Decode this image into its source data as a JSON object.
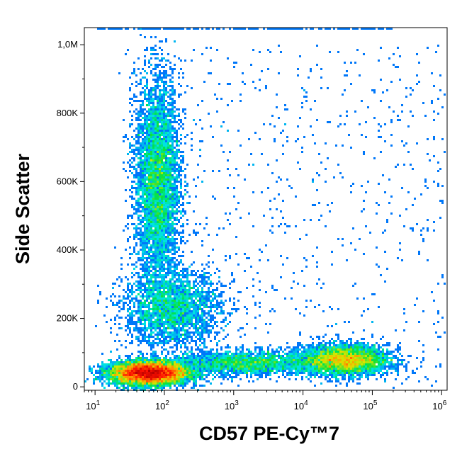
{
  "chart_data": {
    "type": "scatter",
    "subtype": "flow-cytometry-density-dot-plot",
    "title": "",
    "xlabel": "CD57 PE-Cy™7",
    "ylabel": "Side Scatter",
    "x_scale": "log",
    "x_range": [
      7,
      1200000
    ],
    "y_scale": "linear",
    "y_range": [
      -10000,
      1050000
    ],
    "grid": false,
    "legend": "none",
    "x_ticks": [
      {
        "value": 10,
        "base": "10",
        "exp": "1"
      },
      {
        "value": 100,
        "base": "10",
        "exp": "2"
      },
      {
        "value": 1000,
        "base": "10",
        "exp": "3"
      },
      {
        "value": 10000,
        "base": "10",
        "exp": "4"
      },
      {
        "value": 100000,
        "base": "10",
        "exp": "5"
      },
      {
        "value": 1000000,
        "base": "10",
        "exp": "6"
      }
    ],
    "y_ticks": [
      {
        "value": 0,
        "label": "0"
      },
      {
        "value": 200000,
        "label": "200K"
      },
      {
        "value": 400000,
        "label": "400K"
      },
      {
        "value": 600000,
        "label": "600K"
      },
      {
        "value": 800000,
        "label": "800K"
      },
      {
        "value": 1000000,
        "label": "1,0M"
      }
    ],
    "colormap": [
      "#0000cc",
      "#0088ff",
      "#00e8e0",
      "#00e040",
      "#d8e800",
      "#ff9000",
      "#ff1000",
      "#b00000"
    ],
    "populations": [
      {
        "x_center": 60,
        "y_center": 40000,
        "x_spread_decades": 0.28,
        "y_spread": 17000,
        "weight": 1.0
      },
      {
        "x_center": 80,
        "y_center": 600000,
        "x_spread_decades": 0.16,
        "y_spread": 150000,
        "weight": 0.55
      },
      {
        "x_center": 130,
        "y_center": 230000,
        "x_spread_decades": 0.35,
        "y_spread": 55000,
        "weight": 0.3
      },
      {
        "x_center": 40000,
        "y_center": 78000,
        "x_spread_decades": 0.32,
        "y_spread": 22000,
        "weight": 0.45
      },
      {
        "x_center": 1500,
        "y_center": 70000,
        "x_spread_decades": 0.55,
        "y_spread": 18000,
        "weight": 0.25
      }
    ]
  }
}
